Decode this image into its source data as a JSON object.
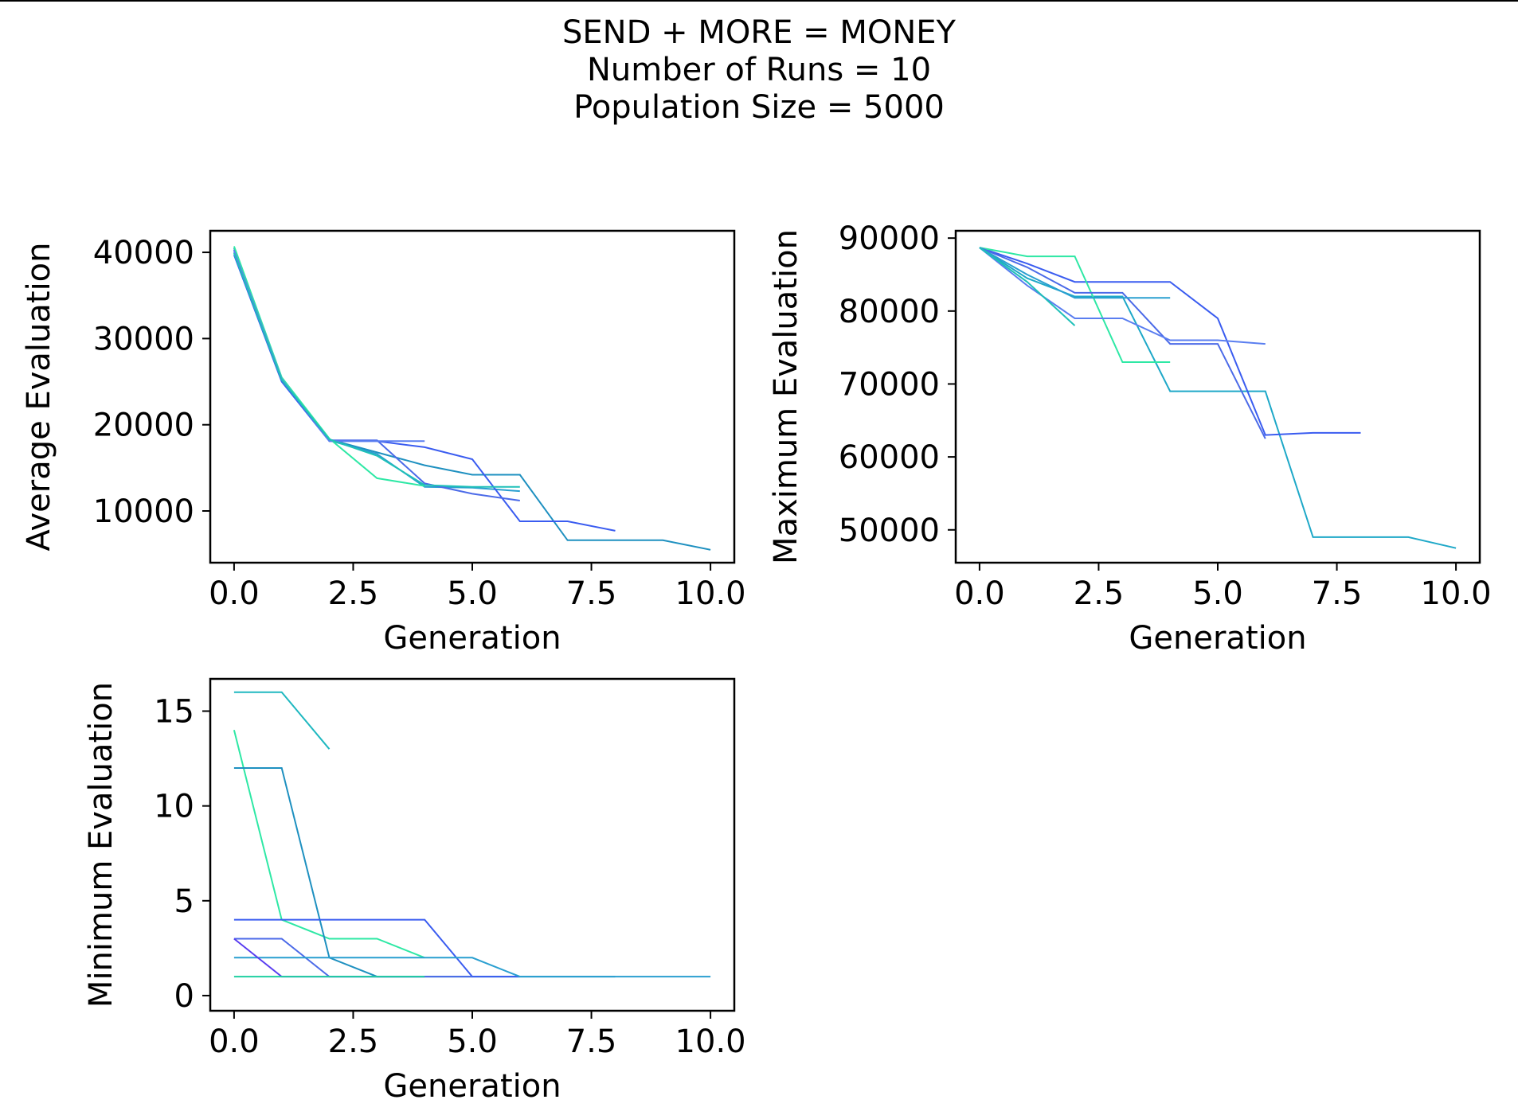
{
  "figure": {
    "title_lines": [
      "SEND + MORE = MONEY",
      "Number of Runs = 10",
      "Population Size = 5000"
    ]
  },
  "chart_data": [
    {
      "type": "line",
      "xlabel": "Generation",
      "ylabel": "Average Evaluation",
      "xlim": [
        -0.5,
        10.5
      ],
      "ylim": [
        4000,
        42500
      ],
      "xticks": [
        0,
        2.5,
        5,
        7.5,
        10
      ],
      "xtick_labels": [
        "0.0",
        "2.5",
        "5.0",
        "7.5",
        "10.0"
      ],
      "yticks": [
        10000,
        20000,
        30000,
        40000
      ],
      "ytick_labels": [
        "10000",
        "20000",
        "30000",
        "40000"
      ],
      "grid": false,
      "series": [
        {
          "color": "#1e90c0",
          "points": [
            [
              0,
              40500
            ],
            [
              1,
              25300
            ],
            [
              2,
              18300
            ],
            [
              3,
              16800
            ],
            [
              4,
              15300
            ],
            [
              5,
              14200
            ],
            [
              6,
              14200
            ],
            [
              7,
              6600
            ],
            [
              8,
              6600
            ],
            [
              9,
              6600
            ],
            [
              10,
              5500
            ]
          ]
        },
        {
          "color": "#2a9fd0",
          "points": [
            [
              0,
              40000
            ],
            [
              1,
              25200
            ],
            [
              2,
              18200
            ],
            [
              3,
              16600
            ],
            [
              4,
              12800
            ],
            [
              5,
              12700
            ],
            [
              6,
              12300
            ]
          ]
        },
        {
          "color": "#3a5cf0",
          "points": [
            [
              0,
              39700
            ],
            [
              1,
              25000
            ],
            [
              2,
              18100
            ],
            [
              3,
              18100
            ],
            [
              4,
              17400
            ],
            [
              5,
              16000
            ],
            [
              6,
              8800
            ],
            [
              7,
              8800
            ],
            [
              8,
              7700
            ]
          ]
        },
        {
          "color": "#4b6ae8",
          "points": [
            [
              0,
              40300
            ],
            [
              1,
              25400
            ],
            [
              2,
              18200
            ],
            [
              3,
              18200
            ],
            [
              4,
              13200
            ],
            [
              5,
              12000
            ],
            [
              6,
              11200
            ]
          ]
        },
        {
          "color": "#2ee8a5",
          "points": [
            [
              0,
              40700
            ],
            [
              1,
              25500
            ],
            [
              2,
              18400
            ],
            [
              3,
              13800
            ],
            [
              4,
              12900
            ]
          ]
        },
        {
          "color": "#5a7ef0",
          "points": [
            [
              0,
              40200
            ],
            [
              1,
              25300
            ],
            [
              2,
              18100
            ],
            [
              3,
              18100
            ],
            [
              4,
              18100
            ]
          ]
        },
        {
          "color": "#1fc0b8",
          "points": [
            [
              0,
              39900
            ],
            [
              1,
              25200
            ],
            [
              2,
              18300
            ],
            [
              3,
              16400
            ],
            [
              4,
              13000
            ],
            [
              5,
              12800
            ],
            [
              6,
              12800
            ]
          ]
        }
      ]
    },
    {
      "type": "line",
      "xlabel": "Generation",
      "ylabel": "Maximum Evaluation",
      "xlim": [
        -0.5,
        10.5
      ],
      "ylim": [
        45500,
        91000
      ],
      "xticks": [
        0,
        2.5,
        5,
        7.5,
        10
      ],
      "xtick_labels": [
        "0.0",
        "2.5",
        "5.0",
        "7.5",
        "10.0"
      ],
      "yticks": [
        50000,
        60000,
        70000,
        80000,
        90000
      ],
      "ytick_labels": [
        "50000",
        "60000",
        "70000",
        "80000",
        "90000"
      ],
      "grid": false,
      "series": [
        {
          "color": "#1ea8c8",
          "points": [
            [
              0,
              88700
            ],
            [
              1,
              84500
            ],
            [
              2,
              82000
            ],
            [
              3,
              82000
            ],
            [
              4,
              69000
            ],
            [
              5,
              69000
            ],
            [
              6,
              69000
            ],
            [
              7,
              49000
            ],
            [
              8,
              49000
            ],
            [
              9,
              49000
            ],
            [
              10,
              47500
            ]
          ]
        },
        {
          "color": "#3a5cf0",
          "points": [
            [
              0,
              88700
            ],
            [
              1,
              86500
            ],
            [
              2,
              84000
            ],
            [
              3,
              84000
            ],
            [
              4,
              84000
            ],
            [
              5,
              79000
            ],
            [
              6,
              63000
            ],
            [
              7,
              63300
            ],
            [
              8,
              63300
            ]
          ]
        },
        {
          "color": "#2ee8a5",
          "points": [
            [
              0,
              88700
            ],
            [
              1,
              87500
            ],
            [
              2,
              87500
            ],
            [
              3,
              73000
            ],
            [
              4,
              73000
            ]
          ]
        },
        {
          "color": "#4b6ae8",
          "points": [
            [
              0,
              88700
            ],
            [
              1,
              86000
            ],
            [
              2,
              82500
            ],
            [
              3,
              82500
            ],
            [
              4,
              75500
            ],
            [
              5,
              75500
            ],
            [
              6,
              62500
            ]
          ]
        },
        {
          "color": "#5a7ef0",
          "points": [
            [
              0,
              88700
            ],
            [
              1,
              83500
            ],
            [
              2,
              79000
            ],
            [
              3,
              79000
            ],
            [
              4,
              76000
            ],
            [
              5,
              76000
            ],
            [
              6,
              75500
            ]
          ]
        },
        {
          "color": "#2a9fd0",
          "points": [
            [
              0,
              88700
            ],
            [
              1,
              85000
            ],
            [
              2,
              81800
            ],
            [
              3,
              81800
            ],
            [
              4,
              81800
            ]
          ]
        },
        {
          "color": "#1fc0b8",
          "points": [
            [
              0,
              88700
            ],
            [
              1,
              84000
            ],
            [
              2,
              78000
            ]
          ]
        }
      ]
    },
    {
      "type": "line",
      "xlabel": "Generation",
      "ylabel": "Minimum Evaluation",
      "xlim": [
        -0.5,
        10.5
      ],
      "ylim": [
        -0.8,
        16.7
      ],
      "xticks": [
        0,
        2.5,
        5,
        7.5,
        10
      ],
      "xtick_labels": [
        "0.0",
        "2.5",
        "5.0",
        "7.5",
        "10.0"
      ],
      "yticks": [
        0,
        5,
        10,
        15
      ],
      "ytick_labels": [
        "0",
        "5",
        "10",
        "15"
      ],
      "grid": false,
      "series": [
        {
          "color": "#1fb8c0",
          "points": [
            [
              0,
              16
            ],
            [
              1,
              16
            ],
            [
              2,
              13
            ]
          ]
        },
        {
          "color": "#2ee8a5",
          "points": [
            [
              0,
              14
            ],
            [
              1,
              4
            ],
            [
              2,
              3
            ],
            [
              3,
              3
            ],
            [
              4,
              2
            ]
          ]
        },
        {
          "color": "#1e90c0",
          "points": [
            [
              0,
              12
            ],
            [
              1,
              12
            ],
            [
              2,
              2
            ],
            [
              3,
              1
            ],
            [
              4,
              1
            ],
            [
              5,
              1
            ],
            [
              6,
              1
            ],
            [
              7,
              1
            ],
            [
              8,
              1
            ]
          ]
        },
        {
          "color": "#3a5cf0",
          "points": [
            [
              0,
              4
            ],
            [
              1,
              4
            ],
            [
              2,
              4
            ],
            [
              3,
              4
            ],
            [
              4,
              4
            ],
            [
              5,
              1
            ],
            [
              6,
              1
            ]
          ]
        },
        {
          "color": "#4b6ae8",
          "points": [
            [
              0,
              3
            ],
            [
              1,
              3
            ],
            [
              2,
              1
            ],
            [
              3,
              1
            ],
            [
              4,
              1
            ],
            [
              5,
              1
            ]
          ]
        },
        {
          "color": "#2a9fd0",
          "points": [
            [
              0,
              2
            ],
            [
              1,
              2
            ],
            [
              2,
              2
            ],
            [
              3,
              2
            ],
            [
              4,
              2
            ],
            [
              5,
              2
            ],
            [
              6,
              1
            ],
            [
              7,
              1
            ],
            [
              8,
              1
            ],
            [
              9,
              1
            ],
            [
              10,
              1
            ]
          ]
        },
        {
          "color": "#5a3ef0",
          "points": [
            [
              0,
              3
            ],
            [
              1,
              1
            ],
            [
              2,
              1
            ],
            [
              3,
              1
            ],
            [
              4,
              1
            ]
          ]
        },
        {
          "color": "#1fd0a0",
          "points": [
            [
              0,
              1
            ],
            [
              1,
              1
            ],
            [
              2,
              1
            ],
            [
              3,
              1
            ],
            [
              4,
              1
            ]
          ]
        }
      ]
    }
  ]
}
